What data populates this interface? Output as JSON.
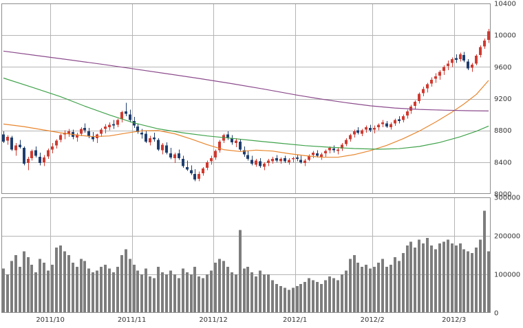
{
  "chart_data": {
    "type": "candlestick",
    "title": "",
    "description": "Daily candlestick price chart with three moving averages and a volume bar sub-chart",
    "price_axis": {
      "position": "right",
      "min": 8000,
      "max": 10400,
      "ticks": [
        10400,
        10000,
        9600,
        9200,
        8800,
        8400,
        8000
      ]
    },
    "volume_axis": {
      "position": "right",
      "min": 0,
      "max": 300000,
      "ticks": [
        300000,
        200000,
        100000,
        0
      ]
    },
    "x_axis": {
      "labels": [
        {
          "index": 12,
          "text": "2011/10"
        },
        {
          "index": 32,
          "text": "2011/11"
        },
        {
          "index": 52,
          "text": "2011/12"
        },
        {
          "index": 72,
          "text": "2012/1"
        },
        {
          "index": 91,
          "text": "2012/2"
        },
        {
          "index": 111,
          "text": "2012/3"
        }
      ]
    },
    "colors": {
      "up": "#d03a30",
      "down": "#1e3d6e",
      "volume": "#7d7d7d",
      "grid": "#b4b4b4",
      "border": "#8c8c8c",
      "text": "#333333",
      "background": "#ffffff"
    },
    "candles": [
      [
        8750,
        8790,
        8640,
        8660,
        115000
      ],
      [
        8670,
        8740,
        8620,
        8720,
        100000
      ],
      [
        8710,
        8730,
        8540,
        8560,
        135000
      ],
      [
        8550,
        8640,
        8480,
        8610,
        150000
      ],
      [
        8620,
        8680,
        8570,
        8590,
        120000
      ],
      [
        8580,
        8600,
        8360,
        8380,
        160000
      ],
      [
        8390,
        8470,
        8300,
        8440,
        145000
      ],
      [
        8450,
        8560,
        8420,
        8540,
        125000
      ],
      [
        8550,
        8600,
        8460,
        8480,
        105000
      ],
      [
        8470,
        8520,
        8360,
        8390,
        140000
      ],
      [
        8400,
        8490,
        8350,
        8460,
        130000
      ],
      [
        8470,
        8570,
        8440,
        8550,
        110000
      ],
      [
        8560,
        8640,
        8510,
        8600,
        125000
      ],
      [
        8610,
        8690,
        8570,
        8670,
        170000
      ],
      [
        8680,
        8760,
        8650,
        8740,
        175000
      ],
      [
        8750,
        8800,
        8690,
        8770,
        160000
      ],
      [
        8760,
        8820,
        8720,
        8790,
        150000
      ],
      [
        8780,
        8810,
        8690,
        8720,
        130000
      ],
      [
        8710,
        8770,
        8660,
        8750,
        120000
      ],
      [
        8760,
        8840,
        8730,
        8820,
        140000
      ],
      [
        8830,
        8890,
        8770,
        8800,
        135000
      ],
      [
        8790,
        8830,
        8700,
        8730,
        115000
      ],
      [
        8720,
        8780,
        8660,
        8690,
        105000
      ],
      [
        8700,
        8760,
        8640,
        8750,
        110000
      ],
      [
        8760,
        8830,
        8720,
        8810,
        120000
      ],
      [
        8820,
        8880,
        8760,
        8850,
        125000
      ],
      [
        8840,
        8900,
        8800,
        8870,
        115000
      ],
      [
        8880,
        8930,
        8820,
        8860,
        105000
      ],
      [
        8870,
        8950,
        8840,
        8930,
        120000
      ],
      [
        8940,
        9050,
        8900,
        9030,
        150000
      ],
      [
        9040,
        9150,
        8980,
        9010,
        165000
      ],
      [
        9000,
        9060,
        8900,
        8930,
        140000
      ],
      [
        8920,
        8970,
        8830,
        8860,
        125000
      ],
      [
        8850,
        8890,
        8760,
        8780,
        110000
      ],
      [
        8770,
        8820,
        8700,
        8750,
        100000
      ],
      [
        8760,
        8800,
        8640,
        8660,
        115000
      ],
      [
        8650,
        8730,
        8610,
        8700,
        95000
      ],
      [
        8710,
        8770,
        8660,
        8690,
        90000
      ],
      [
        8680,
        8700,
        8540,
        8560,
        120000
      ],
      [
        8550,
        8640,
        8500,
        8620,
        105000
      ],
      [
        8610,
        8650,
        8500,
        8520,
        100000
      ],
      [
        8510,
        8580,
        8440,
        8460,
        110000
      ],
      [
        8450,
        8520,
        8390,
        8500,
        100000
      ],
      [
        8510,
        8560,
        8430,
        8450,
        90000
      ],
      [
        8440,
        8480,
        8330,
        8350,
        115000
      ],
      [
        8340,
        8420,
        8290,
        8310,
        105000
      ],
      [
        8300,
        8360,
        8240,
        8260,
        100000
      ],
      [
        8250,
        8310,
        8160,
        8180,
        120000
      ],
      [
        8190,
        8280,
        8160,
        8250,
        95000
      ],
      [
        8260,
        8340,
        8230,
        8320,
        90000
      ],
      [
        8330,
        8420,
        8300,
        8400,
        100000
      ],
      [
        8410,
        8480,
        8370,
        8450,
        110000
      ],
      [
        8460,
        8560,
        8430,
        8540,
        130000
      ],
      [
        8550,
        8680,
        8520,
        8660,
        140000
      ],
      [
        8670,
        8760,
        8640,
        8740,
        135000
      ],
      [
        8750,
        8790,
        8680,
        8710,
        120000
      ],
      [
        8700,
        8740,
        8620,
        8650,
        105000
      ],
      [
        8640,
        8700,
        8590,
        8670,
        100000
      ],
      [
        8660,
        8690,
        8540,
        8560,
        215000
      ],
      [
        8550,
        8600,
        8470,
        8500,
        115000
      ],
      [
        8490,
        8540,
        8420,
        8440,
        120000
      ],
      [
        8430,
        8480,
        8360,
        8380,
        105000
      ],
      [
        8370,
        8440,
        8340,
        8420,
        95000
      ],
      [
        8410,
        8450,
        8330,
        8350,
        110000
      ],
      [
        8340,
        8400,
        8300,
        8380,
        100000
      ],
      [
        8390,
        8440,
        8350,
        8420,
        100000
      ],
      [
        8410,
        8470,
        8380,
        8440,
        85000
      ],
      [
        8450,
        8490,
        8400,
        8420,
        75000
      ],
      [
        8410,
        8460,
        8380,
        8440,
        70000
      ],
      [
        8450,
        8480,
        8390,
        8410,
        65000
      ],
      [
        8400,
        8450,
        8370,
        8430,
        60000
      ],
      [
        8440,
        8470,
        8400,
        8450,
        65000
      ],
      [
        8460,
        8500,
        8410,
        8440,
        70000
      ],
      [
        8430,
        8480,
        8380,
        8400,
        75000
      ],
      [
        8390,
        8440,
        8350,
        8420,
        80000
      ],
      [
        8430,
        8500,
        8410,
        8480,
        90000
      ],
      [
        8490,
        8540,
        8450,
        8520,
        85000
      ],
      [
        8510,
        8550,
        8460,
        8480,
        80000
      ],
      [
        8470,
        8520,
        8430,
        8500,
        75000
      ],
      [
        8510,
        8560,
        8470,
        8540,
        85000
      ],
      [
        8550,
        8600,
        8510,
        8580,
        95000
      ],
      [
        8570,
        8610,
        8520,
        8550,
        90000
      ],
      [
        8540,
        8590,
        8500,
        8560,
        85000
      ],
      [
        8570,
        8640,
        8540,
        8620,
        100000
      ],
      [
        8630,
        8700,
        8600,
        8680,
        110000
      ],
      [
        8690,
        8760,
        8660,
        8740,
        140000
      ],
      [
        8750,
        8810,
        8710,
        8790,
        150000
      ],
      [
        8800,
        8840,
        8750,
        8770,
        130000
      ],
      [
        8760,
        8820,
        8730,
        8800,
        120000
      ],
      [
        8810,
        8860,
        8770,
        8840,
        125000
      ],
      [
        8830,
        8870,
        8780,
        8800,
        115000
      ],
      [
        8810,
        8860,
        8760,
        8830,
        120000
      ],
      [
        8840,
        8890,
        8800,
        8870,
        130000
      ],
      [
        8880,
        8930,
        8840,
        8900,
        140000
      ],
      [
        8890,
        8920,
        8830,
        8850,
        120000
      ],
      [
        8840,
        8900,
        8810,
        8880,
        125000
      ],
      [
        8890,
        8950,
        8860,
        8930,
        145000
      ],
      [
        8940,
        8980,
        8890,
        8920,
        135000
      ],
      [
        8930,
        9000,
        8900,
        8980,
        155000
      ],
      [
        8990,
        9060,
        8950,
        9040,
        175000
      ],
      [
        9050,
        9120,
        9010,
        9100,
        185000
      ],
      [
        9110,
        9180,
        9070,
        9160,
        170000
      ],
      [
        9170,
        9280,
        9140,
        9260,
        190000
      ],
      [
        9270,
        9350,
        9230,
        9320,
        180000
      ],
      [
        9330,
        9400,
        9280,
        9380,
        195000
      ],
      [
        9390,
        9470,
        9350,
        9440,
        175000
      ],
      [
        9450,
        9520,
        9400,
        9480,
        165000
      ],
      [
        9490,
        9560,
        9440,
        9540,
        180000
      ],
      [
        9550,
        9620,
        9500,
        9600,
        185000
      ],
      [
        9610,
        9680,
        9560,
        9640,
        190000
      ],
      [
        9650,
        9720,
        9600,
        9700,
        180000
      ],
      [
        9710,
        9760,
        9650,
        9690,
        175000
      ],
      [
        9700,
        9780,
        9670,
        9760,
        180000
      ],
      [
        9750,
        9790,
        9660,
        9680,
        165000
      ],
      [
        9670,
        9700,
        9560,
        9580,
        160000
      ],
      [
        9590,
        9650,
        9540,
        9630,
        155000
      ],
      [
        9640,
        9760,
        9620,
        9740,
        170000
      ],
      [
        9750,
        9870,
        9720,
        9850,
        190000
      ],
      [
        9860,
        9960,
        9830,
        9930,
        265000
      ],
      [
        9940,
        10080,
        9900,
        10050,
        160000
      ]
    ],
    "moving_averages": [
      {
        "name": "ma-short",
        "label": "short-term moving average",
        "color": "#e8852c",
        "points": [
          [
            0,
            8880
          ],
          [
            5,
            8848
          ],
          [
            10,
            8805
          ],
          [
            14,
            8770
          ],
          [
            18,
            8742
          ],
          [
            22,
            8722
          ],
          [
            26,
            8730
          ],
          [
            30,
            8765
          ],
          [
            34,
            8795
          ],
          [
            38,
            8798
          ],
          [
            42,
            8758
          ],
          [
            46,
            8692
          ],
          [
            50,
            8620
          ],
          [
            54,
            8558
          ],
          [
            58,
            8535
          ],
          [
            62,
            8552
          ],
          [
            66,
            8540
          ],
          [
            70,
            8508
          ],
          [
            74,
            8482
          ],
          [
            78,
            8462
          ],
          [
            82,
            8462
          ],
          [
            86,
            8495
          ],
          [
            90,
            8545
          ],
          [
            94,
            8612
          ],
          [
            98,
            8695
          ],
          [
            102,
            8792
          ],
          [
            106,
            8905
          ],
          [
            110,
            9030
          ],
          [
            113,
            9135
          ],
          [
            116,
            9255
          ],
          [
            119,
            9430
          ]
        ]
      },
      {
        "name": "ma-mid",
        "label": "medium-term moving average",
        "color": "#3fa24a",
        "points": [
          [
            0,
            9460
          ],
          [
            7,
            9345
          ],
          [
            14,
            9225
          ],
          [
            20,
            9105
          ],
          [
            26,
            8995
          ],
          [
            32,
            8895
          ],
          [
            38,
            8820
          ],
          [
            44,
            8770
          ],
          [
            50,
            8730
          ],
          [
            56,
            8700
          ],
          [
            62,
            8668
          ],
          [
            68,
            8638
          ],
          [
            74,
            8608
          ],
          [
            80,
            8588
          ],
          [
            86,
            8572
          ],
          [
            92,
            8563
          ],
          [
            97,
            8570
          ],
          [
            102,
            8598
          ],
          [
            107,
            8648
          ],
          [
            112,
            8720
          ],
          [
            116,
            8790
          ],
          [
            119,
            8855
          ]
        ]
      },
      {
        "name": "ma-long",
        "label": "long-term moving average",
        "color": "#8b4a8b",
        "points": [
          [
            0,
            9800
          ],
          [
            8,
            9745
          ],
          [
            16,
            9690
          ],
          [
            24,
            9635
          ],
          [
            32,
            9575
          ],
          [
            40,
            9515
          ],
          [
            48,
            9455
          ],
          [
            56,
            9390
          ],
          [
            64,
            9320
          ],
          [
            72,
            9245
          ],
          [
            78,
            9195
          ],
          [
            84,
            9150
          ],
          [
            90,
            9110
          ],
          [
            96,
            9082
          ],
          [
            102,
            9065
          ],
          [
            108,
            9055
          ],
          [
            114,
            9048
          ],
          [
            119,
            9045
          ]
        ]
      }
    ]
  }
}
